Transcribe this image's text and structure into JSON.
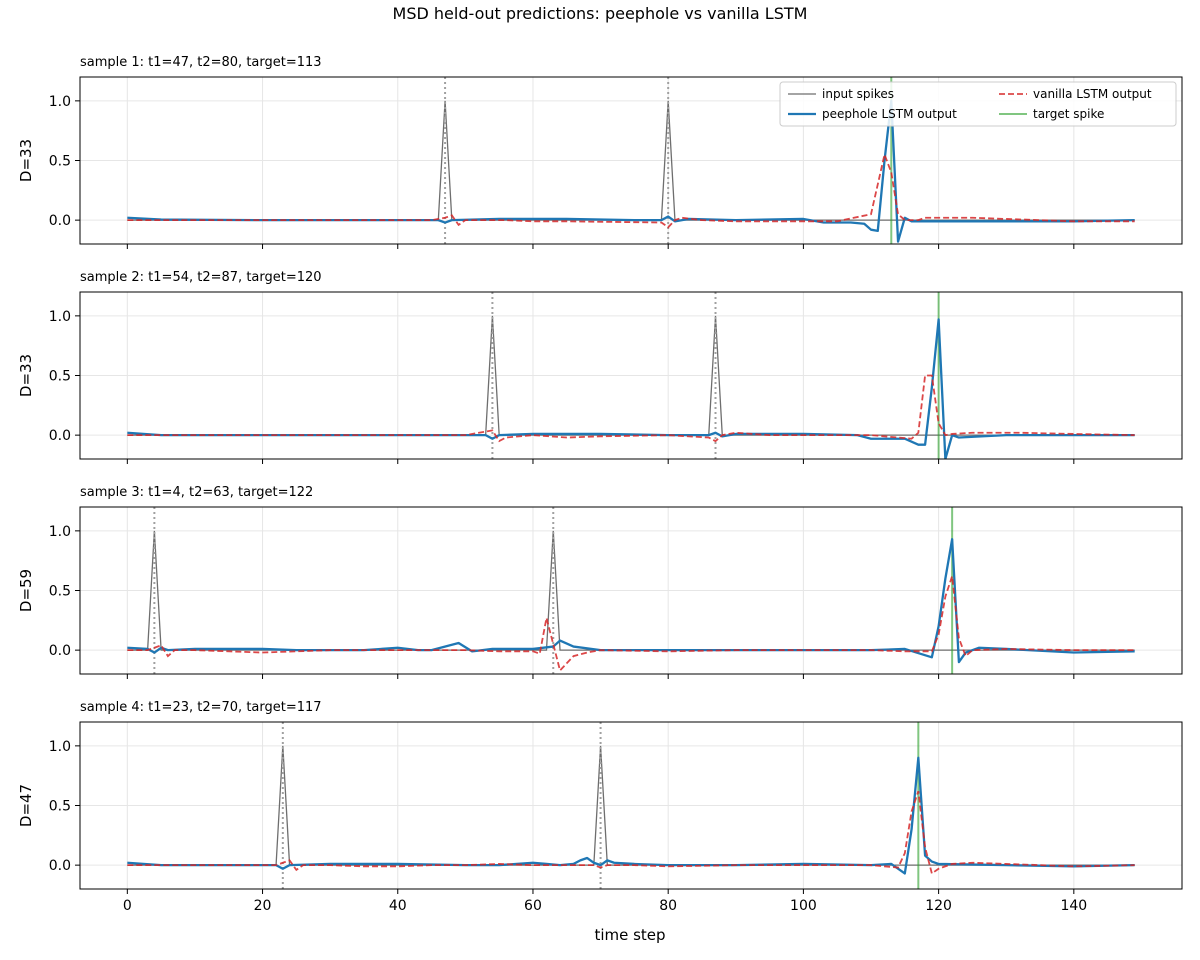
{
  "figure": {
    "title": "MSD held-out predictions: peephole vs vanilla LSTM",
    "xlabel": "time step"
  },
  "legend": {
    "placement": "top-right of first panel",
    "entries": [
      "input spikes",
      "vanilla LSTM output",
      "peephole LSTM output",
      "target spike"
    ]
  },
  "colors": {
    "input": "#6e6e6e",
    "peephole": "#1f77b4",
    "vanilla": "#d62728",
    "target": "#2ca02c",
    "marker": "#a0a0a0",
    "grid": "#e6e6e6"
  },
  "chart_data": [
    {
      "type": "line",
      "title": "sample 1: t1=47, t2=80, target=113",
      "ylabel": "D=33",
      "xlim": [
        -7,
        156
      ],
      "ylim": [
        -0.2,
        1.2
      ],
      "xticks": [
        0,
        20,
        40,
        60,
        80,
        100,
        120,
        140
      ],
      "yticks": [
        "0.0",
        "0.5",
        "1.0"
      ],
      "t1": 47,
      "t2": 80,
      "target": 113,
      "peephole": [
        [
          0,
          0.02
        ],
        [
          5,
          0.005
        ],
        [
          20,
          0
        ],
        [
          40,
          0
        ],
        [
          46,
          0
        ],
        [
          47,
          -0.02
        ],
        [
          48,
          0
        ],
        [
          55,
          0.01
        ],
        [
          65,
          0.01
        ],
        [
          75,
          0
        ],
        [
          79,
          0
        ],
        [
          80,
          0.03
        ],
        [
          81,
          -0.01
        ],
        [
          83,
          0.01
        ],
        [
          90,
          0
        ],
        [
          100,
          0.01
        ],
        [
          103,
          -0.02
        ],
        [
          107,
          -0.02
        ],
        [
          109,
          -0.03
        ],
        [
          110,
          -0.08
        ],
        [
          111,
          -0.09
        ],
        [
          112,
          0.5
        ],
        [
          113,
          1.0
        ],
        [
          114,
          -0.18
        ],
        [
          115,
          0.02
        ],
        [
          116,
          -0.01
        ],
        [
          120,
          -0.01
        ],
        [
          130,
          -0.01
        ],
        [
          140,
          -0.01
        ],
        [
          149,
          0
        ]
      ],
      "vanilla": [
        [
          0,
          0
        ],
        [
          20,
          0
        ],
        [
          45,
          0
        ],
        [
          47,
          0.02
        ],
        [
          48,
          0.04
        ],
        [
          49,
          -0.04
        ],
        [
          50,
          0
        ],
        [
          56,
          0
        ],
        [
          60,
          -0.01
        ],
        [
          65,
          -0.01
        ],
        [
          79,
          -0.02
        ],
        [
          80,
          -0.06
        ],
        [
          81,
          0
        ],
        [
          82,
          0.02
        ],
        [
          85,
          0
        ],
        [
          90,
          -0.01
        ],
        [
          100,
          -0.01
        ],
        [
          105,
          -0.01
        ],
        [
          110,
          0.05
        ],
        [
          112,
          0.55
        ],
        [
          113,
          0.4
        ],
        [
          114,
          0.05
        ],
        [
          115,
          0
        ],
        [
          117,
          0
        ],
        [
          118,
          0.02
        ],
        [
          125,
          0.02
        ],
        [
          130,
          0.01
        ],
        [
          140,
          -0.01
        ],
        [
          149,
          -0.01
        ]
      ]
    },
    {
      "type": "line",
      "title": "sample 2: t1=54, t2=87, target=120",
      "ylabel": "D=33",
      "xlim": [
        -7,
        156
      ],
      "ylim": [
        -0.2,
        1.2
      ],
      "xticks": [
        0,
        20,
        40,
        60,
        80,
        100,
        120,
        140
      ],
      "yticks": [
        "0.0",
        "0.5",
        "1.0"
      ],
      "t1": 54,
      "t2": 87,
      "target": 120,
      "peephole": [
        [
          0,
          0.02
        ],
        [
          5,
          0
        ],
        [
          20,
          0
        ],
        [
          40,
          0
        ],
        [
          50,
          0
        ],
        [
          53,
          0
        ],
        [
          54,
          -0.03
        ],
        [
          55,
          0
        ],
        [
          60,
          0.01
        ],
        [
          70,
          0.01
        ],
        [
          80,
          0
        ],
        [
          86,
          0
        ],
        [
          87,
          0.02
        ],
        [
          88,
          -0.01
        ],
        [
          90,
          0.01
        ],
        [
          100,
          0.01
        ],
        [
          108,
          0
        ],
        [
          110,
          -0.03
        ],
        [
          115,
          -0.03
        ],
        [
          117,
          -0.08
        ],
        [
          118,
          -0.08
        ],
        [
          119,
          0.4
        ],
        [
          120,
          0.97
        ],
        [
          121,
          -0.2
        ],
        [
          122,
          0
        ],
        [
          123,
          -0.02
        ],
        [
          130,
          0
        ],
        [
          140,
          0
        ],
        [
          149,
          0
        ]
      ],
      "vanilla": [
        [
          0,
          0
        ],
        [
          20,
          0
        ],
        [
          50,
          0
        ],
        [
          54,
          0.04
        ],
        [
          55,
          -0.05
        ],
        [
          56,
          -0.02
        ],
        [
          60,
          0
        ],
        [
          65,
          -0.02
        ],
        [
          70,
          -0.01
        ],
        [
          80,
          0
        ],
        [
          86,
          -0.02
        ],
        [
          87,
          -0.05
        ],
        [
          88,
          0
        ],
        [
          90,
          0.02
        ],
        [
          95,
          0
        ],
        [
          100,
          0
        ],
        [
          110,
          0
        ],
        [
          116,
          -0.03
        ],
        [
          117,
          0.02
        ],
        [
          118,
          0.5
        ],
        [
          119,
          0.5
        ],
        [
          120,
          0.1
        ],
        [
          121,
          0
        ],
        [
          122,
          0.01
        ],
        [
          125,
          0.02
        ],
        [
          132,
          0.02
        ],
        [
          140,
          0.01
        ],
        [
          149,
          0
        ]
      ]
    },
    {
      "type": "line",
      "title": "sample 3: t1=4, t2=63, target=122",
      "ylabel": "D=59",
      "xlim": [
        -7,
        156
      ],
      "ylim": [
        -0.2,
        1.2
      ],
      "xticks": [
        0,
        20,
        40,
        60,
        80,
        100,
        120,
        140
      ],
      "yticks": [
        "0.0",
        "0.5",
        "1.0"
      ],
      "t1": 4,
      "t2": 63,
      "target": 122,
      "peephole": [
        [
          0,
          0.02
        ],
        [
          3,
          0.01
        ],
        [
          4,
          -0.02
        ],
        [
          5,
          0.02
        ],
        [
          6,
          0
        ],
        [
          10,
          0.01
        ],
        [
          20,
          0.01
        ],
        [
          25,
          0
        ],
        [
          30,
          0
        ],
        [
          35,
          0
        ],
        [
          40,
          0.02
        ],
        [
          43,
          0
        ],
        [
          45,
          0
        ],
        [
          49,
          0.06
        ],
        [
          51,
          -0.01
        ],
        [
          54,
          0.01
        ],
        [
          60,
          0.01
        ],
        [
          63,
          0.03
        ],
        [
          64,
          0.08
        ],
        [
          66,
          0.03
        ],
        [
          70,
          0
        ],
        [
          80,
          0
        ],
        [
          90,
          0
        ],
        [
          100,
          0
        ],
        [
          110,
          0
        ],
        [
          115,
          0.01
        ],
        [
          119,
          -0.06
        ],
        [
          120,
          0.2
        ],
        [
          121,
          0.6
        ],
        [
          122,
          0.93
        ],
        [
          123,
          -0.1
        ],
        [
          124,
          -0.02
        ],
        [
          126,
          0.02
        ],
        [
          130,
          0.01
        ],
        [
          140,
          -0.02
        ],
        [
          149,
          -0.01
        ]
      ],
      "vanilla": [
        [
          0,
          0
        ],
        [
          3,
          0
        ],
        [
          4,
          0.02
        ],
        [
          5,
          0.04
        ],
        [
          6,
          -0.05
        ],
        [
          7,
          0
        ],
        [
          10,
          0
        ],
        [
          20,
          -0.02
        ],
        [
          30,
          0
        ],
        [
          40,
          0
        ],
        [
          43,
          0
        ],
        [
          45,
          0
        ],
        [
          50,
          0
        ],
        [
          55,
          -0.01
        ],
        [
          60,
          -0.01
        ],
        [
          61,
          -0.03
        ],
        [
          62,
          0.27
        ],
        [
          63,
          0.05
        ],
        [
          64,
          -0.17
        ],
        [
          66,
          -0.05
        ],
        [
          68,
          -0.02
        ],
        [
          70,
          0
        ],
        [
          80,
          -0.01
        ],
        [
          90,
          0
        ],
        [
          100,
          0
        ],
        [
          110,
          0
        ],
        [
          115,
          -0.01
        ],
        [
          119,
          -0.01
        ],
        [
          120,
          0.13
        ],
        [
          121,
          0.45
        ],
        [
          122,
          0.62
        ],
        [
          123,
          0.1
        ],
        [
          124,
          -0.05
        ],
        [
          125,
          0
        ],
        [
          130,
          0.01
        ],
        [
          140,
          0
        ],
        [
          149,
          0
        ]
      ]
    },
    {
      "type": "line",
      "title": "sample 4: t1=23, t2=70, target=117",
      "ylabel": "D=47",
      "xlim": [
        -7,
        156
      ],
      "ylim": [
        -0.2,
        1.2
      ],
      "xticks": [
        0,
        20,
        40,
        60,
        80,
        100,
        120,
        140
      ],
      "yticks": [
        "0.0",
        "0.5",
        "1.0"
      ],
      "t1": 23,
      "t2": 70,
      "target": 117,
      "peephole": [
        [
          0,
          0.02
        ],
        [
          5,
          0
        ],
        [
          20,
          0
        ],
        [
          22,
          0
        ],
        [
          23,
          -0.03
        ],
        [
          24,
          0
        ],
        [
          30,
          0.01
        ],
        [
          40,
          0.01
        ],
        [
          50,
          0
        ],
        [
          55,
          0
        ],
        [
          60,
          0.02
        ],
        [
          62,
          0.01
        ],
        [
          64,
          0
        ],
        [
          66,
          0.01
        ],
        [
          67,
          0.04
        ],
        [
          68,
          0.06
        ],
        [
          69,
          0.02
        ],
        [
          70,
          0
        ],
        [
          71,
          0.04
        ],
        [
          72,
          0.02
        ],
        [
          75,
          0.01
        ],
        [
          80,
          0
        ],
        [
          90,
          0
        ],
        [
          100,
          0.01
        ],
        [
          110,
          0
        ],
        [
          113,
          0.01
        ],
        [
          115,
          -0.07
        ],
        [
          116,
          0.3
        ],
        [
          117,
          0.9
        ],
        [
          118,
          0.08
        ],
        [
          119,
          0.03
        ],
        [
          120,
          0.01
        ],
        [
          130,
          0
        ],
        [
          140,
          -0.01
        ],
        [
          149,
          0
        ]
      ],
      "vanilla": [
        [
          0,
          0
        ],
        [
          20,
          0
        ],
        [
          22,
          0
        ],
        [
          23,
          0.02
        ],
        [
          24,
          0.04
        ],
        [
          25,
          -0.04
        ],
        [
          26,
          0
        ],
        [
          30,
          0
        ],
        [
          35,
          -0.01
        ],
        [
          40,
          -0.01
        ],
        [
          45,
          0
        ],
        [
          50,
          0
        ],
        [
          55,
          0.01
        ],
        [
          60,
          0
        ],
        [
          65,
          0
        ],
        [
          69,
          0
        ],
        [
          70,
          -0.02
        ],
        [
          71,
          0
        ],
        [
          75,
          0
        ],
        [
          80,
          -0.01
        ],
        [
          90,
          0
        ],
        [
          100,
          0
        ],
        [
          110,
          0
        ],
        [
          114,
          -0.02
        ],
        [
          115,
          0.1
        ],
        [
          116,
          0.45
        ],
        [
          117,
          0.62
        ],
        [
          118,
          0.15
        ],
        [
          119,
          -0.07
        ],
        [
          120,
          -0.03
        ],
        [
          122,
          0.01
        ],
        [
          125,
          0.02
        ],
        [
          130,
          0.01
        ],
        [
          140,
          -0.01
        ],
        [
          149,
          0
        ]
      ]
    }
  ]
}
